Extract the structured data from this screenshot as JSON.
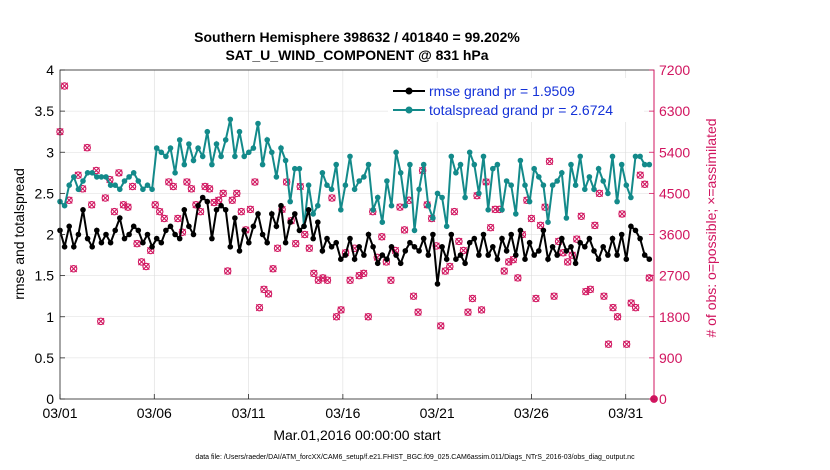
{
  "chart_data": {
    "type": "line",
    "title": "Southern Hemisphere 398632 / 401840 = 99.202%",
    "subtitle": "SAT_U_WIND_COMPONENT @ 831 hPa",
    "xlabel": "Mar.01,2016 00:00:00 start",
    "ylabel": "rmse and totalspread",
    "ylabel_right": "# of obs: o=possible; ×=assimilated",
    "xlim": [
      0,
      31.5
    ],
    "ylim": [
      0,
      4
    ],
    "ylim_right": [
      0,
      7200
    ],
    "x_ticks": [
      {
        "value": 0,
        "label": "03/01"
      },
      {
        "value": 5,
        "label": "03/06"
      },
      {
        "value": 10,
        "label": "03/11"
      },
      {
        "value": 15,
        "label": "03/16"
      },
      {
        "value": 20,
        "label": "03/21"
      },
      {
        "value": 25,
        "label": "03/26"
      },
      {
        "value": 30,
        "label": "03/31"
      }
    ],
    "y_ticks": [
      "0",
      "0.5",
      "1",
      "1.5",
      "2",
      "2.5",
      "3",
      "3.5",
      "4"
    ],
    "y_ticks_right": [
      "0",
      "900",
      "1800",
      "2700",
      "3600",
      "4500",
      "5400",
      "6300",
      "7200"
    ],
    "legend": [
      "rmse grand pr = 1.9509",
      "totalspread grand pr = 2.6724"
    ],
    "footnote": "data file: /Users/raeder/DAI/ATM_forcXX/CAM6_setup/f.e21.FHIST_BGC.f09_025.CAM6assim.011/Diags_NTrS_2016-03/obs_diag_output.nc",
    "series": [
      {
        "name": "rmse",
        "color": "#000000",
        "values": [
          2.05,
          1.85,
          2.1,
          1.85,
          2.0,
          2.3,
          1.95,
          1.85,
          2.05,
          1.9,
          2.0,
          1.9,
          2.05,
          2.2,
          1.95,
          2.0,
          2.1,
          2.05,
          1.9,
          2.0,
          1.85,
          1.95,
          1.9,
          2.05,
          2.1,
          2.0,
          1.95,
          2.3,
          2.1,
          2.0,
          2.35,
          2.45,
          2.4,
          1.95,
          2.3,
          2.35,
          2.3,
          1.85,
          2.2,
          1.8,
          2.05,
          1.9,
          2.1,
          2.25,
          2.0,
          1.9,
          2.25,
          2.1,
          2.35,
          1.9,
          2.15,
          2.25,
          2.05,
          2.1,
          2.3,
          1.95,
          2.15,
          1.8,
          1.95,
          1.85,
          1.9,
          1.7,
          1.75,
          1.95,
          1.7,
          1.85,
          1.75,
          2.0,
          1.85,
          1.65,
          1.75,
          1.7,
          1.85,
          1.75,
          1.65,
          1.8,
          1.9,
          1.85,
          1.8,
          1.95,
          1.75,
          2.0,
          1.4,
          1.85,
          1.7,
          2.0,
          1.7,
          1.75,
          1.65,
          1.9,
          1.95,
          1.75,
          2.0,
          1.75,
          1.85,
          1.7,
          1.95,
          1.8,
          2.0,
          1.75,
          2.05,
          1.7,
          1.9,
          1.75,
          1.8,
          2.05,
          1.7,
          1.85,
          1.75,
          1.95,
          1.8,
          1.85,
          1.65,
          1.9,
          1.85,
          1.95,
          1.8,
          1.7,
          1.85,
          1.75,
          1.95,
          1.75,
          2.0,
          1.7,
          2.1,
          2.05,
          1.95,
          1.75,
          1.7
        ]
      },
      {
        "name": "totalspread",
        "color": "#138a8a",
        "values": [
          2.4,
          2.35,
          2.6,
          2.7,
          2.55,
          2.65,
          2.75,
          2.75,
          2.7,
          2.7,
          2.7,
          2.6,
          2.6,
          2.55,
          2.65,
          2.7,
          2.75,
          2.65,
          2.55,
          2.6,
          2.55,
          3.05,
          3.0,
          2.95,
          3.05,
          2.75,
          3.15,
          2.85,
          3.1,
          2.9,
          3.05,
          2.95,
          3.25,
          2.85,
          3.1,
          2.95,
          3.15,
          3.4,
          2.95,
          3.25,
          2.95,
          3.0,
          3.05,
          3.35,
          2.85,
          3.15,
          3.0,
          2.7,
          3.05,
          2.9,
          2.4,
          2.8,
          2.8,
          2.1,
          2.6,
          2.25,
          2.35,
          2.75,
          2.6,
          2.55,
          2.85,
          2.3,
          2.6,
          2.95,
          2.55,
          2.65,
          2.7,
          2.85,
          2.3,
          2.45,
          2.15,
          2.65,
          2.35,
          3.0,
          2.75,
          2.35,
          2.85,
          2.05,
          2.55,
          2.85,
          2.35,
          2.2,
          2.5,
          2.45,
          2.1,
          2.95,
          2.75,
          2.85,
          2.45,
          3.0,
          2.85,
          2.5,
          2.95,
          2.3,
          2.8,
          2.85,
          2.3,
          2.65,
          2.6,
          2.25,
          2.9,
          2.6,
          2.4,
          2.8,
          2.7,
          2.6,
          2.15,
          2.6,
          2.65,
          2.75,
          2.2,
          2.85,
          2.6,
          2.95,
          2.55,
          2.7,
          2.55,
          2.8,
          2.65,
          2.5,
          2.95,
          2.4,
          2.85,
          2.6,
          2.45,
          2.95,
          2.95,
          2.85,
          2.85
        ]
      },
      {
        "name": "# obs possible / assimilated",
        "color": "#d1155f",
        "values": [
          5850,
          6850,
          4350,
          2850,
          4900,
          4600,
          5500,
          4250,
          5000,
          1700,
          4400,
          4800,
          4100,
          4950,
          4250,
          4200,
          4650,
          3400,
          3000,
          2900,
          3250,
          4250,
          4100,
          3950,
          4750,
          4650,
          3950,
          3650,
          4750,
          4600,
          4250,
          4100,
          4650,
          4600,
          4300,
          4350,
          4500,
          2800,
          4350,
          4500,
          4100,
          3700,
          4150,
          4750,
          2000,
          2400,
          2300,
          2850,
          3300,
          4150,
          4750,
          3900,
          3400,
          4650,
          3600,
          3300,
          2750,
          2600,
          2650,
          2600,
          4400,
          1800,
          1950,
          3200,
          2600,
          3300,
          2700,
          2750,
          1800,
          4100,
          3100,
          3550,
          3000,
          2600,
          3250,
          4200,
          3700,
          4350,
          2250,
          1900,
          5000,
          4250,
          3950,
          3350,
          1600,
          2800,
          2900,
          4100,
          3450,
          3250,
          1900,
          2200,
          4450,
          1950,
          4750,
          3750,
          4150,
          4150,
          2800,
          3000,
          3050,
          2650,
          3600,
          4350,
          3950,
          2200,
          3800,
          4200,
          5200,
          2250,
          3450,
          3200,
          3000,
          3150,
          3500,
          4000,
          2350,
          2400,
          3800,
          4500,
          2250,
          1200,
          2000,
          1800,
          4050,
          1200,
          2100,
          2000,
          4900,
          4700,
          2650
        ]
      }
    ]
  }
}
